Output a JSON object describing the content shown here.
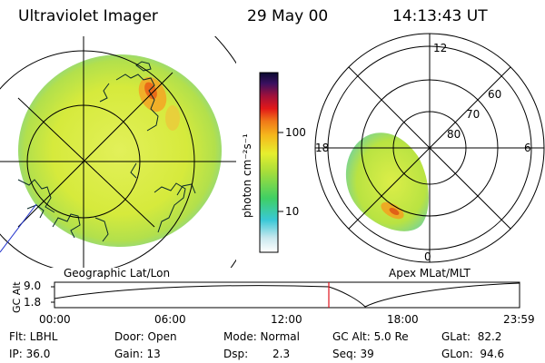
{
  "header": {
    "instrument": "Ultraviolet Imager",
    "date": "29 May 00",
    "time": "14:13:43 UT"
  },
  "colors": {
    "image_base": "#d9ee3a",
    "image_bright": "#f59a20",
    "grid": "#000000",
    "timeline_marker": "#e0101a"
  },
  "left_panel": {
    "label": "Geographic Lat/Lon"
  },
  "colorbar": {
    "unit_label": "photon cm⁻²s⁻¹",
    "ticks": [
      "100",
      "10"
    ],
    "scale": "log"
  },
  "right_panel": {
    "label": "Apex MLat/MLT",
    "mlt_labels": {
      "top": "12",
      "left": "18",
      "right": "6",
      "bottom": "0"
    },
    "lat_labels": [
      "60",
      "70",
      "80"
    ]
  },
  "timeline": {
    "axis_label": "GC Alt",
    "y_ticks": [
      "9.0",
      "1.8"
    ],
    "x_ticks": [
      "00:00",
      "06:00",
      "12:00",
      "18:00",
      "23:59"
    ],
    "marker_time": "14:13"
  },
  "info": {
    "flt": "Flt: LBHL",
    "ip": "IP: 36.0",
    "door": "Door: Open",
    "gain": "Gain: 13",
    "mode": "Mode: Normal",
    "dsp_label": "Dsp:",
    "dsp_value": "2.3",
    "gc_alt": "GC Alt: 5.0 Re",
    "seq": "Seq: 39",
    "glat": "GLat:  82.2",
    "glon": "GLon:  94.6"
  }
}
